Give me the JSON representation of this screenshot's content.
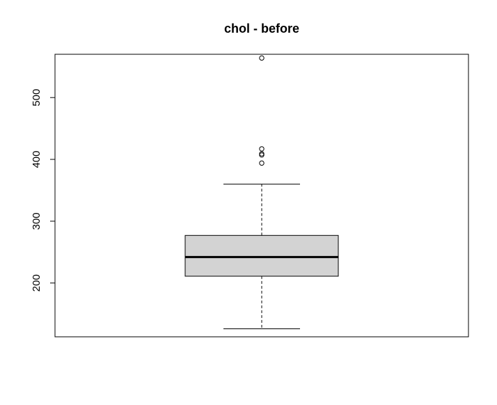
{
  "chart_data": {
    "type": "boxplot",
    "title": "chol - before",
    "xlabel": "",
    "ylabel": "",
    "ylim": [
      113,
      570
    ],
    "yticks": [
      200,
      300,
      400,
      500
    ],
    "grid": false,
    "box": {
      "whisker_low": 126,
      "q1": 211,
      "median": 242,
      "q3": 277,
      "whisker_high": 360
    },
    "outliers": [
      394,
      407,
      409,
      417,
      564
    ],
    "colors": {
      "box_fill": "#d3d3d3",
      "stroke": "#000000"
    }
  }
}
